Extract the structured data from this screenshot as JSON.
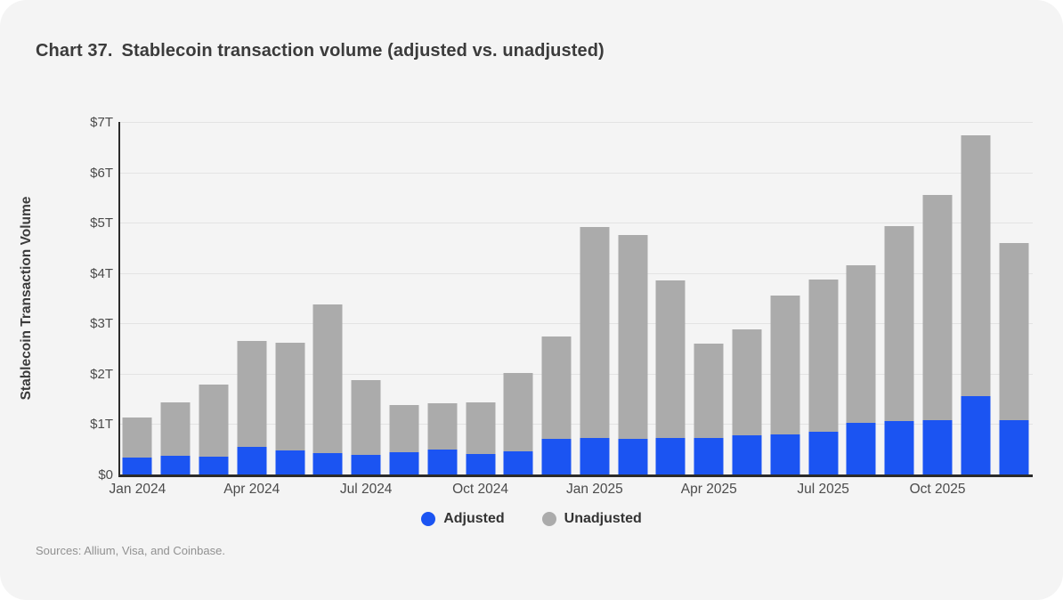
{
  "header": {
    "chart_number": "Chart 37.",
    "title": "Stablecoin transaction volume (adjusted vs. unadjusted)"
  },
  "chart_data": {
    "type": "bar",
    "title": "Chart 37. Stablecoin transaction volume (adjusted vs. unadjusted)",
    "xlabel": "",
    "ylabel": "Stablecoin Transaction Volume",
    "unit": "trillions USD",
    "ylim": [
      0,
      7
    ],
    "grid": true,
    "legend_position": "bottom",
    "bar_style": "overlaid (adjusted drawn in front of unadjusted)",
    "y_ticks": [
      {
        "value": 0,
        "label": "$0"
      },
      {
        "value": 1,
        "label": "$1T"
      },
      {
        "value": 2,
        "label": "$2T"
      },
      {
        "value": 3,
        "label": "$3T"
      },
      {
        "value": 4,
        "label": "$4T"
      },
      {
        "value": 5,
        "label": "$5T"
      },
      {
        "value": 6,
        "label": "$6T"
      },
      {
        "value": 7,
        "label": "$7T"
      }
    ],
    "categories": [
      "Jan 2024",
      "Feb 2024",
      "Mar 2024",
      "Apr 2024",
      "May 2024",
      "Jun 2024",
      "Jul 2024",
      "Aug 2024",
      "Sep 2024",
      "Oct 2024",
      "Nov 2024",
      "Dec 2024",
      "Jan 2025",
      "Feb 2025",
      "Mar 2025",
      "Apr 2025",
      "May 2025",
      "Jun 2025",
      "Jul 2025",
      "Aug 2025",
      "Sep 2025",
      "Oct 2025",
      "Nov 2025",
      "Dec 2025"
    ],
    "x_tick_indices": [
      0,
      3,
      6,
      9,
      12,
      15,
      18,
      21
    ],
    "x_tick_labels": [
      "Jan 2024",
      "Apr 2024",
      "Jul 2024",
      "Oct 2024",
      "Jan 2025",
      "Apr 2025",
      "Jul 2025",
      "Oct 2025"
    ],
    "series": [
      {
        "name": "Unadjusted",
        "color": "#ababab",
        "values": [
          1.13,
          1.43,
          1.78,
          2.66,
          2.62,
          3.38,
          1.87,
          1.38,
          1.41,
          1.44,
          2.02,
          2.74,
          4.92,
          4.75,
          3.85,
          2.6,
          2.88,
          3.56,
          3.87,
          4.16,
          4.94,
          5.55,
          6.74,
          4.59
        ]
      },
      {
        "name": "Adjusted",
        "color": "#1b54f2",
        "values": [
          0.34,
          0.38,
          0.35,
          0.54,
          0.48,
          0.43,
          0.39,
          0.45,
          0.49,
          0.4,
          0.46,
          0.7,
          0.73,
          0.71,
          0.72,
          0.72,
          0.78,
          0.8,
          0.85,
          1.02,
          1.06,
          1.08,
          1.55,
          1.08
        ]
      }
    ]
  },
  "legend": {
    "items": [
      {
        "label": "Adjusted",
        "color": "#1b54f2"
      },
      {
        "label": "Unadjusted",
        "color": "#ababab"
      }
    ]
  },
  "footer": {
    "sources": "Sources: Allium, Visa, and Coinbase."
  },
  "colors": {
    "adjusted": "#1b54f2",
    "unadjusted": "#ababab",
    "card_background": "#f4f4f4",
    "gridline": "#e3e3e3",
    "axis": "#2b2b2b",
    "title_text": "#3b3b3b",
    "tick_text": "#4b4b4b",
    "source_text": "#919191"
  }
}
